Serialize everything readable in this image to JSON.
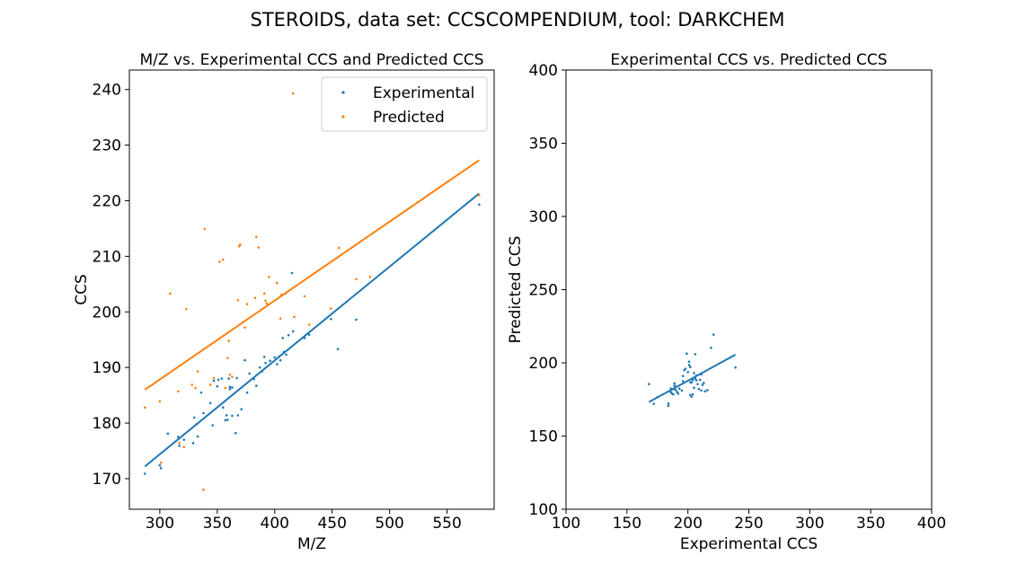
{
  "figure": {
    "suptitle": "STEROIDS, data set: CCSCOMPENDIUM, tool: DARKCHEM"
  },
  "colors": {
    "experimental": "#1f77b4",
    "predicted": "#ff7f0e",
    "axis": "#000000",
    "background": "#ffffff"
  },
  "chart_data": [
    {
      "type": "scatter",
      "title": "M/Z vs. Experimental CCS and Predicted CCS",
      "xlabel": "M/Z",
      "ylabel": "CCS",
      "xlim": [
        273.5,
        591
      ],
      "ylim": [
        164.5,
        243.5
      ],
      "xticks": [
        300,
        350,
        400,
        450,
        500,
        550
      ],
      "yticks": [
        170,
        180,
        190,
        200,
        210,
        220,
        230,
        240
      ],
      "grid": false,
      "legend": {
        "placement": "top-right",
        "entries": [
          "Experimental",
          "Predicted"
        ]
      },
      "series": [
        {
          "name": "Experimental",
          "color": "#1f77b4",
          "fit": {
            "x": [
              287,
              578
            ],
            "y": [
              172.2,
              221.3
            ]
          },
          "points": [
            [
              287,
              170.9
            ],
            [
              300,
              172.4
            ],
            [
              301,
              171.9
            ],
            [
              307,
              178.1
            ],
            [
              316,
              177.5
            ],
            [
              317,
              175.9
            ],
            [
              321,
              177.0
            ],
            [
              329,
              176.4
            ],
            [
              330,
              181.0
            ],
            [
              332,
              179.8
            ],
            [
              333,
              177.6
            ],
            [
              336,
              185.5
            ],
            [
              338,
              181.8
            ],
            [
              344,
              183.6
            ],
            [
              346,
              179.6
            ],
            [
              347,
              187.6
            ],
            [
              350,
              186.6
            ],
            [
              351,
              187.8
            ],
            [
              354,
              188.0
            ],
            [
              355,
              182.8
            ],
            [
              357,
              180.5
            ],
            [
              358,
              181.4
            ],
            [
              359,
              180.6
            ],
            [
              360,
              188.0
            ],
            [
              361,
              186.5
            ],
            [
              361,
              186.1
            ],
            [
              363,
              186.4
            ],
            [
              363,
              181.3
            ],
            [
              366,
              178.2
            ],
            [
              367,
              188.1
            ],
            [
              368,
              181.4
            ],
            [
              371,
              182.5
            ],
            [
              374,
              191.3
            ],
            [
              376,
              185.5
            ],
            [
              378,
              188.9
            ],
            [
              382,
              187.9
            ],
            [
              384,
              186.7
            ],
            [
              387,
              190.0
            ],
            [
              389,
              189.3
            ],
            [
              391,
              191.9
            ],
            [
              392,
              190.8
            ],
            [
              396,
              191.2
            ],
            [
              400,
              191.8
            ],
            [
              402,
              190.6
            ],
            [
              404,
              192.0
            ],
            [
              405,
              191.3
            ],
            [
              407,
              195.3
            ],
            [
              408,
              192.8
            ],
            [
              410,
              192.3
            ],
            [
              412,
              195.8
            ],
            [
              415,
              207.0
            ],
            [
              416,
              196.5
            ],
            [
              426,
              195.3
            ],
            [
              430,
              195.9
            ],
            [
              449,
              198.7
            ],
            [
              455,
              193.3
            ],
            [
              471,
              198.6
            ],
            [
              578,
              219.3
            ]
          ]
        },
        {
          "name": "Predicted",
          "color": "#ff7f0e",
          "fit": {
            "x": [
              287,
              578
            ],
            "y": [
              186.0,
              227.3
            ]
          },
          "points": [
            [
              287,
              182.8
            ],
            [
              300,
              183.9
            ],
            [
              301,
              172.9
            ],
            [
              309,
              203.3
            ],
            [
              316,
              185.7
            ],
            [
              317,
              176.4
            ],
            [
              321,
              175.7
            ],
            [
              323,
              200.5
            ],
            [
              328,
              186.9
            ],
            [
              331,
              186.3
            ],
            [
              333,
              189.3
            ],
            [
              338,
              168.0
            ],
            [
              339,
              214.9
            ],
            [
              344,
              186.9
            ],
            [
              347,
              188.1
            ],
            [
              352,
              209.0
            ],
            [
              355,
              209.4
            ],
            [
              357,
              186.3
            ],
            [
              359,
              191.7
            ],
            [
              360,
              194.8
            ],
            [
              361,
              188.7
            ],
            [
              363,
              188.3
            ],
            [
              368,
              202.1
            ],
            [
              369,
              211.8
            ],
            [
              370,
              212.1
            ],
            [
              374,
              197.2
            ],
            [
              376,
              201.4
            ],
            [
              383,
              202.5
            ],
            [
              384,
              213.5
            ],
            [
              386,
              211.6
            ],
            [
              391,
              203.3
            ],
            [
              392,
              202.0
            ],
            [
              393,
              201.5
            ],
            [
              395,
              206.3
            ],
            [
              402,
              205.2
            ],
            [
              405,
              198.8
            ],
            [
              406,
              203.1
            ],
            [
              410,
              203.4
            ],
            [
              416,
              239.3
            ],
            [
              417,
              199.1
            ],
            [
              426,
              202.8
            ],
            [
              430,
              197.7
            ],
            [
              449,
              200.6
            ],
            [
              456,
              211.5
            ],
            [
              471,
              205.9
            ],
            [
              483,
              206.3
            ],
            [
              578,
              221.0
            ]
          ]
        }
      ]
    },
    {
      "type": "scatter",
      "title": "Experimental CCS vs. Predicted CCS",
      "xlabel": "Experimental CCS",
      "ylabel": "Predicted CCS",
      "xlim": [
        100,
        400
      ],
      "ylim": [
        100,
        400
      ],
      "xticks": [
        100,
        150,
        200,
        250,
        300,
        350,
        400
      ],
      "yticks": [
        100,
        150,
        200,
        250,
        300,
        350,
        400
      ],
      "grid": false,
      "series": [
        {
          "name": "",
          "color": "#1f77b4",
          "fit": {
            "x": [
              168,
              239
            ],
            "y": [
              173.2,
              205.6
            ]
          },
          "points": [
            [
              168,
              185.5
            ],
            [
              172,
              172.0
            ],
            [
              175,
              176.5
            ],
            [
              184,
              172.2
            ],
            [
              184,
              170.6
            ],
            [
              186,
              182.5
            ],
            [
              186,
              180.0
            ],
            [
              187,
              179.0
            ],
            [
              188,
              182.0
            ],
            [
              188,
              178.5
            ],
            [
              189,
              186.0
            ],
            [
              189,
              184.4
            ],
            [
              190,
              183.6
            ],
            [
              190,
              181.6
            ],
            [
              191,
              180.2
            ],
            [
              192,
              179.0
            ],
            [
              193,
              182.4
            ],
            [
              195,
              181.1
            ],
            [
              196,
              187.5
            ],
            [
              196,
              191.0
            ],
            [
              197,
              195.0
            ],
            [
              198,
              196.0
            ],
            [
              199,
              206.3
            ],
            [
              200,
              193.7
            ],
            [
              201,
              198.5
            ],
            [
              201,
              200.8
            ],
            [
              202,
              197.2
            ],
            [
              202,
              186.8
            ],
            [
              202,
              178.0
            ],
            [
              203,
              176.9
            ],
            [
              203,
              186.6
            ],
            [
              204,
              188.2
            ],
            [
              204,
              178.5
            ],
            [
              205,
              183.0
            ],
            [
              205,
              193.0
            ],
            [
              206,
              189.3
            ],
            [
              206,
              205.9
            ],
            [
              207,
              188.0
            ],
            [
              207,
              191.3
            ],
            [
              208,
              185.5
            ],
            [
              209,
              182.1
            ],
            [
              210,
              188.4
            ],
            [
              211,
              192.2
            ],
            [
              211,
              181.2
            ],
            [
              212,
              185.0
            ],
            [
              213,
              186.3
            ],
            [
              214,
              180.6
            ],
            [
              216,
              181.3
            ],
            [
              219,
              210.3
            ],
            [
              221,
              219.3
            ],
            [
              239,
              196.8
            ]
          ]
        }
      ]
    }
  ]
}
